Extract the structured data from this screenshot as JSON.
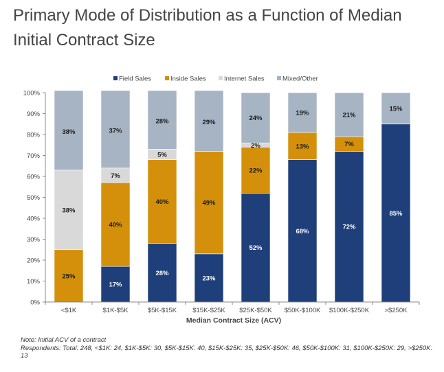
{
  "title": "Primary Mode of Distribution as a Function of Median Initial Contract Size",
  "note": "Note: Initial ACV of a contract",
  "respondents": "Respondents: Total: 248, <$1K: 24, $1K-$5K: 30, $5K-$15K: 40, $15K-$25K: 35, $25K-$50K: 46, $50K-$100K: 31, $100K-$250K: 29, >$250K: 13",
  "chart_data": {
    "type": "bar",
    "stacked": true,
    "categories": [
      "<$1K",
      "$1K-$5K",
      "$5K-$15K",
      "$15K-$25K",
      "$25K-$50K",
      "$50K-$100K",
      "$100K-$250K",
      ">$250K"
    ],
    "series": [
      {
        "name": "Field Sales",
        "color": "#1f3f7a",
        "values": [
          0,
          17,
          28,
          23,
          52,
          68,
          72,
          85
        ],
        "labels": [
          "",
          "17%",
          "28%",
          "23%",
          "52%",
          "68%",
          "72%",
          "85%"
        ]
      },
      {
        "name": "Inside Sales",
        "color": "#d4900a",
        "values": [
          25,
          40,
          40,
          49,
          22,
          13,
          7,
          0
        ],
        "labels": [
          "25%",
          "40%",
          "40%",
          "49%",
          "22%",
          "13%",
          "7%",
          ""
        ]
      },
      {
        "name": "Internet Sales",
        "color": "#d9d9d9",
        "values": [
          38,
          7,
          5,
          0,
          2,
          0,
          0,
          0
        ],
        "labels": [
          "38%",
          "7%",
          "5%",
          "",
          "2%",
          "",
          "",
          ""
        ]
      },
      {
        "name": "Mixed/Other",
        "color": "#a6b4c3",
        "values": [
          38,
          37,
          28,
          29,
          24,
          19,
          21,
          15
        ],
        "labels": [
          "38%",
          "37%",
          "28%",
          "29%",
          "24%",
          "19%",
          "21%",
          "15%"
        ]
      }
    ],
    "xlabel": "Median Contract Size (ACV)",
    "ylabel": "",
    "ylim": [
      0,
      100
    ],
    "yticks": [
      "0%",
      "10%",
      "20%",
      "30%",
      "40%",
      "50%",
      "60%",
      "70%",
      "80%",
      "90%",
      "100%"
    ],
    "legend_position": "top"
  }
}
